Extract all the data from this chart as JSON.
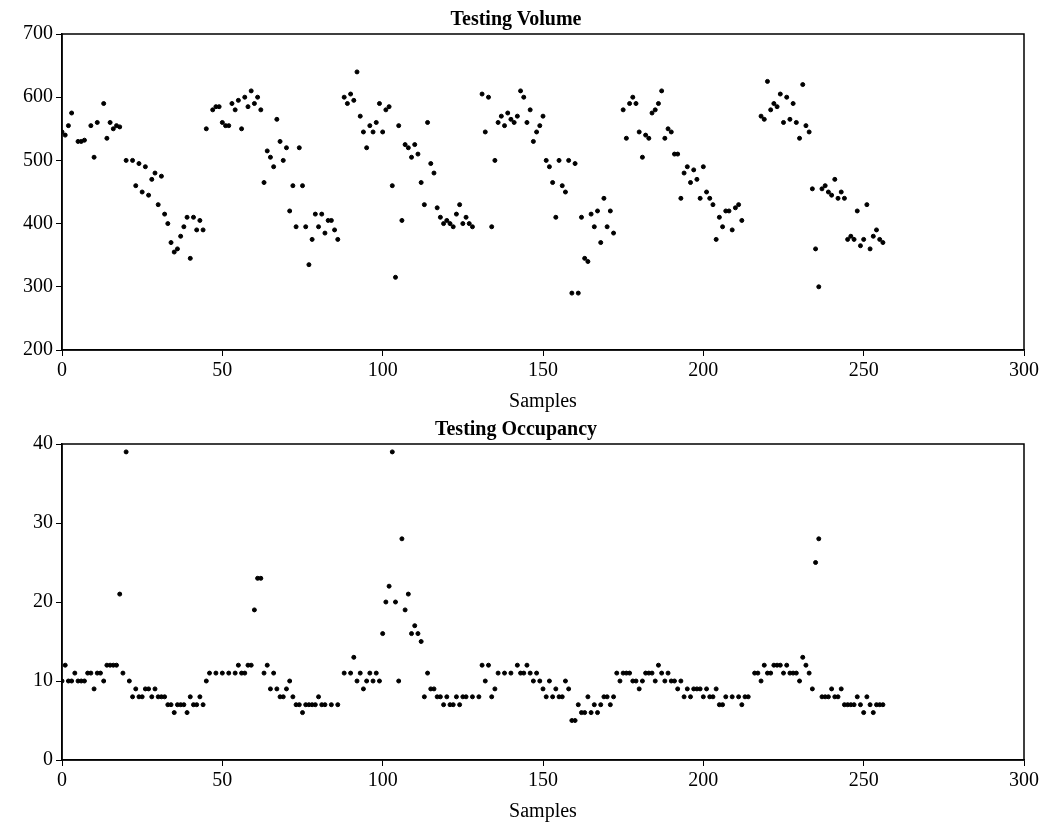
{
  "chart_data": [
    {
      "type": "scatter",
      "title": "Testing Volume",
      "xlabel": "Samples",
      "xlim": [
        0,
        300
      ],
      "xticks": [
        0,
        50,
        100,
        150,
        200,
        250,
        300
      ],
      "ylim": [
        200,
        700
      ],
      "yticks": [
        200,
        300,
        400,
        500,
        600,
        700
      ],
      "grid": false,
      "legend": false,
      "marker": "circle",
      "series": [
        {
          "color": "#000000",
          "x": [
            0,
            1,
            2,
            3,
            5,
            6,
            7,
            9,
            10,
            11,
            13,
            14,
            15,
            16,
            17,
            18,
            20,
            22,
            23,
            24,
            25,
            26,
            27,
            28,
            29,
            30,
            31,
            32,
            33,
            34,
            35,
            36,
            37,
            38,
            39,
            40,
            41,
            42,
            43,
            44,
            45,
            47,
            48,
            49,
            50,
            51,
            52,
            53,
            54,
            55,
            56,
            57,
            58,
            59,
            60,
            61,
            62,
            63,
            64,
            65,
            66,
            67,
            68,
            69,
            70,
            71,
            72,
            73,
            74,
            75,
            76,
            77,
            78,
            79,
            80,
            81,
            82,
            83,
            84,
            85,
            86,
            88,
            89,
            90,
            91,
            92,
            93,
            94,
            95,
            96,
            97,
            98,
            99,
            100,
            101,
            102,
            103,
            104,
            105,
            106,
            107,
            108,
            109,
            110,
            111,
            112,
            113,
            114,
            115,
            116,
            117,
            118,
            119,
            120,
            121,
            122,
            123,
            124,
            125,
            126,
            127,
            128,
            131,
            132,
            133,
            134,
            135,
            136,
            137,
            138,
            139,
            140,
            141,
            142,
            143,
            144,
            145,
            146,
            147,
            148,
            149,
            150,
            151,
            152,
            153,
            154,
            155,
            156,
            157,
            158,
            159,
            160,
            161,
            162,
            163,
            164,
            165,
            166,
            167,
            168,
            169,
            170,
            171,
            172,
            175,
            176,
            177,
            178,
            179,
            180,
            181,
            182,
            183,
            184,
            185,
            186,
            187,
            188,
            189,
            190,
            191,
            192,
            193,
            194,
            195,
            196,
            197,
            198,
            199,
            200,
            201,
            202,
            203,
            204,
            205,
            206,
            207,
            208,
            209,
            210,
            211,
            212,
            218,
            219,
            220,
            221,
            222,
            223,
            224,
            225,
            226,
            227,
            228,
            229,
            230,
            231,
            232,
            233,
            234,
            235,
            236,
            237,
            238,
            239,
            240,
            241,
            242,
            243,
            244,
            245,
            246,
            247,
            248,
            249,
            250,
            251,
            252,
            253,
            254,
            255,
            256
          ],
          "values": [
            545,
            540,
            555,
            575,
            530,
            530,
            532,
            555,
            505,
            560,
            590,
            535,
            560,
            550,
            555,
            553,
            500,
            500,
            460,
            495,
            450,
            490,
            445,
            470,
            480,
            430,
            475,
            415,
            400,
            370,
            355,
            360,
            380,
            395,
            410,
            345,
            410,
            390,
            405,
            390,
            550,
            580,
            585,
            585,
            560,
            555,
            555,
            590,
            580,
            595,
            550,
            600,
            585,
            610,
            590,
            600,
            580,
            465,
            515,
            505,
            490,
            565,
            530,
            500,
            520,
            420,
            460,
            395,
            520,
            460,
            395,
            335,
            375,
            415,
            395,
            415,
            385,
            405,
            405,
            390,
            375,
            600,
            590,
            605,
            595,
            640,
            570,
            545,
            520,
            555,
            545,
            560,
            590,
            545,
            580,
            585,
            460,
            315,
            555,
            405,
            525,
            520,
            505,
            525,
            510,
            465,
            430,
            560,
            495,
            480,
            425,
            410,
            400,
            405,
            400,
            395,
            415,
            430,
            400,
            410,
            400,
            395,
            605,
            545,
            600,
            395,
            500,
            560,
            570,
            555,
            575,
            565,
            560,
            570,
            610,
            600,
            560,
            580,
            530,
            545,
            555,
            570,
            500,
            490,
            465,
            410,
            500,
            460,
            450,
            500,
            290,
            495,
            290,
            410,
            345,
            340,
            415,
            395,
            420,
            370,
            440,
            395,
            420,
            385,
            580,
            535,
            590,
            600,
            590,
            545,
            505,
            540,
            535,
            575,
            580,
            590,
            610,
            535,
            550,
            545,
            510,
            510,
            440,
            480,
            490,
            465,
            485,
            470,
            440,
            490,
            450,
            440,
            430,
            375,
            410,
            395,
            420,
            420,
            390,
            425,
            430,
            405,
            570,
            565,
            625,
            580,
            590,
            585,
            605,
            560,
            600,
            565,
            590,
            560,
            535,
            620,
            555,
            545,
            455,
            360,
            300,
            455,
            460,
            450,
            445,
            470,
            440,
            450,
            440,
            375,
            380,
            375,
            420,
            365,
            375,
            430,
            360,
            380,
            390,
            375,
            370
          ]
        }
      ]
    },
    {
      "type": "scatter",
      "title": "Testing Occupancy",
      "xlabel": "Samples",
      "xlim": [
        0,
        300
      ],
      "xticks": [
        0,
        50,
        100,
        150,
        200,
        250,
        300
      ],
      "ylim": [
        0,
        40
      ],
      "yticks": [
        0,
        10,
        20,
        30,
        40
      ],
      "grid": false,
      "legend": false,
      "marker": "circle",
      "series": [
        {
          "color": "#000000",
          "x": [
            0,
            1,
            2,
            3,
            4,
            5,
            6,
            7,
            8,
            9,
            10,
            11,
            12,
            13,
            14,
            15,
            16,
            17,
            18,
            19,
            20,
            21,
            22,
            23,
            24,
            25,
            26,
            27,
            28,
            29,
            30,
            31,
            32,
            33,
            34,
            35,
            36,
            37,
            38,
            39,
            40,
            41,
            42,
            43,
            44,
            45,
            46,
            48,
            50,
            52,
            54,
            55,
            56,
            57,
            58,
            59,
            60,
            61,
            62,
            63,
            64,
            65,
            66,
            67,
            68,
            69,
            70,
            71,
            72,
            73,
            74,
            75,
            76,
            77,
            78,
            79,
            80,
            81,
            82,
            84,
            86,
            88,
            90,
            91,
            92,
            93,
            94,
            95,
            96,
            97,
            98,
            99,
            100,
            101,
            102,
            103,
            104,
            105,
            106,
            107,
            108,
            109,
            110,
            111,
            112,
            113,
            114,
            115,
            116,
            117,
            118,
            119,
            120,
            121,
            122,
            123,
            124,
            125,
            126,
            128,
            130,
            131,
            132,
            133,
            134,
            135,
            136,
            138,
            140,
            142,
            143,
            144,
            145,
            146,
            147,
            148,
            149,
            150,
            151,
            152,
            153,
            154,
            155,
            156,
            157,
            158,
            159,
            160,
            161,
            162,
            163,
            164,
            165,
            166,
            167,
            168,
            169,
            170,
            171,
            172,
            173,
            174,
            175,
            176,
            177,
            178,
            179,
            180,
            181,
            182,
            183,
            184,
            185,
            186,
            187,
            188,
            189,
            190,
            191,
            192,
            193,
            194,
            195,
            196,
            197,
            198,
            199,
            200,
            201,
            202,
            203,
            204,
            205,
            206,
            207,
            209,
            211,
            212,
            213,
            214,
            216,
            217,
            218,
            219,
            220,
            221,
            222,
            223,
            224,
            225,
            226,
            227,
            228,
            229,
            230,
            231,
            232,
            233,
            234,
            235,
            236,
            237,
            238,
            239,
            240,
            241,
            242,
            243,
            244,
            245,
            246,
            247,
            248,
            249,
            250,
            251,
            252,
            253,
            254,
            255,
            256
          ],
          "values": [
            10,
            12,
            10,
            10,
            11,
            10,
            10,
            10,
            11,
            11,
            9,
            11,
            11,
            10,
            12,
            12,
            12,
            12,
            21,
            11,
            39,
            10,
            8,
            9,
            8,
            8,
            9,
            9,
            8,
            9,
            8,
            8,
            8,
            7,
            7,
            6,
            7,
            7,
            7,
            6,
            8,
            7,
            7,
            8,
            7,
            10,
            11,
            11,
            11,
            11,
            11,
            12,
            11,
            11,
            12,
            12,
            19,
            23,
            23,
            11,
            12,
            9,
            11,
            9,
            8,
            8,
            9,
            10,
            8,
            7,
            7,
            6,
            7,
            7,
            7,
            7,
            8,
            7,
            7,
            7,
            7,
            11,
            11,
            13,
            10,
            11,
            9,
            10,
            11,
            10,
            11,
            10,
            16,
            20,
            22,
            39,
            20,
            10,
            28,
            19,
            21,
            16,
            17,
            16,
            15,
            8,
            11,
            9,
            9,
            8,
            8,
            7,
            8,
            7,
            7,
            8,
            7,
            8,
            8,
            8,
            8,
            12,
            10,
            12,
            8,
            9,
            11,
            11,
            11,
            12,
            11,
            11,
            12,
            11,
            10,
            11,
            10,
            9,
            8,
            10,
            8,
            9,
            8,
            8,
            10,
            9,
            5,
            5,
            7,
            6,
            6,
            8,
            6,
            7,
            6,
            7,
            8,
            8,
            7,
            8,
            11,
            10,
            11,
            11,
            11,
            10,
            10,
            9,
            10,
            11,
            11,
            11,
            10,
            12,
            11,
            10,
            11,
            10,
            10,
            9,
            10,
            8,
            9,
            8,
            9,
            9,
            9,
            8,
            9,
            8,
            8,
            9,
            7,
            7,
            8,
            8,
            8,
            7,
            8,
            8,
            11,
            11,
            10,
            12,
            11,
            11,
            12,
            12,
            12,
            11,
            12,
            11,
            11,
            11,
            10,
            13,
            12,
            11,
            9,
            25,
            28,
            8,
            8,
            8,
            9,
            8,
            8,
            9,
            7,
            7,
            7,
            7,
            8,
            7,
            6,
            8,
            7,
            6,
            7,
            7,
            7
          ]
        }
      ]
    }
  ]
}
